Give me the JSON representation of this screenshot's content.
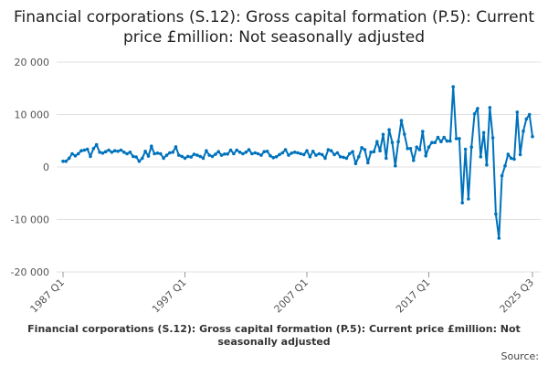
{
  "chart_data": {
    "type": "line",
    "title": "Financial corporations (S.12): Gross capital formation (P.5): Current price £million: Not seasonally adjusted",
    "xlabel": "",
    "ylabel": "",
    "x_start": "1987 Q1",
    "x_end": "2025 Q3",
    "x_frequency": "quarterly",
    "x_tick_labels": [
      "1987 Q1",
      "1997 Q1",
      "2007 Q1",
      "2017 Q1",
      "2025 Q3"
    ],
    "x_tick_indices": [
      0,
      40,
      80,
      120,
      154
    ],
    "y_tick_labels": [
      "20 000",
      "10 000",
      "0",
      "-10 000",
      "-20 000"
    ],
    "y_ticks": [
      20000,
      10000,
      0,
      -10000,
      -20000
    ],
    "ylim": [
      -20000,
      20000
    ],
    "grid": true,
    "legend": "none",
    "line_color": "#0072bc",
    "values": [
      1090,
      1090,
      1670,
      2530,
      2130,
      2530,
      3100,
      3220,
      3390,
      2010,
      3510,
      4250,
      2820,
      2640,
      2930,
      3220,
      2820,
      3100,
      2990,
      3220,
      2820,
      2530,
      2820,
      2010,
      1900,
      1090,
      1670,
      2990,
      2070,
      3970,
      2530,
      2640,
      2530,
      1670,
      2240,
      2700,
      2820,
      3850,
      2240,
      2010,
      1670,
      2010,
      1900,
      2410,
      2240,
      2010,
      1670,
      3100,
      2240,
      2010,
      2410,
      2930,
      2240,
      2470,
      2470,
      3220,
      2530,
      3220,
      2820,
      2530,
      2820,
      3280,
      2530,
      2700,
      2530,
      2240,
      2930,
      2990,
      2130,
      1780,
      1950,
      2360,
      2700,
      3280,
      2240,
      2640,
      2820,
      2700,
      2530,
      2360,
      3100,
      1950,
      2990,
      2240,
      2530,
      2360,
      1670,
      3280,
      3100,
      2360,
      2700,
      1950,
      1840,
      1670,
      2530,
      2930,
      640,
      1950,
      3680,
      3280,
      800,
      2820,
      2930,
      4830,
      3100,
      6210,
      1670,
      7090,
      4660,
      230,
      4830,
      8850,
      6260,
      3510,
      3510,
      1260,
      3790,
      3280,
      6780,
      2130,
      3790,
      4660,
      4660,
      5630,
      4830,
      5630,
      4940,
      4940,
      15290,
      5400,
      5400,
      -6840,
      3390,
      -6090,
      3790,
      10120,
      11150,
      1950,
      6550,
      400,
      11330,
      5570,
      -8970,
      -13560,
      -1670,
      230,
      2410,
      1670,
      1490,
      10460,
      2360,
      6840,
      9140,
      10000,
      5800
    ]
  },
  "caption": "Financial corporations (S.12): Gross capital formation (P.5): Current price £million: Not seasonally adjusted",
  "source_label": "Source:"
}
